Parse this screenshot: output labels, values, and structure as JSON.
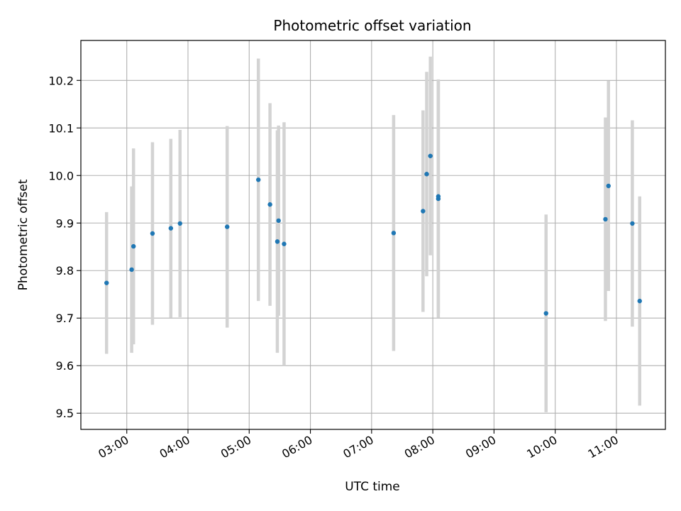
{
  "chart_data": {
    "type": "scatter",
    "title": "Photometric offset variation",
    "xlabel": "UTC time",
    "ylabel": "Photometric offset",
    "grid": true,
    "xlim": [
      2.25,
      11.8
    ],
    "ylim": [
      9.466,
      10.284
    ],
    "x_ticks": [
      {
        "value": 3,
        "label": "03:00"
      },
      {
        "value": 4,
        "label": "04:00"
      },
      {
        "value": 5,
        "label": "05:00"
      },
      {
        "value": 6,
        "label": "06:00"
      },
      {
        "value": 7,
        "label": "07:00"
      },
      {
        "value": 8,
        "label": "08:00"
      },
      {
        "value": 9,
        "label": "09:00"
      },
      {
        "value": 10,
        "label": "10:00"
      },
      {
        "value": 11,
        "label": "11:00"
      }
    ],
    "y_ticks": [
      {
        "value": 9.5,
        "label": "9.5"
      },
      {
        "value": 9.6,
        "label": "9.6"
      },
      {
        "value": 9.7,
        "label": "9.7"
      },
      {
        "value": 9.8,
        "label": "9.8"
      },
      {
        "value": 9.9,
        "label": "9.9"
      },
      {
        "value": 10.0,
        "label": "10.0"
      },
      {
        "value": 10.1,
        "label": "10.1"
      },
      {
        "value": 10.2,
        "label": "10.2"
      }
    ],
    "point_color": "#1f77b4",
    "errorbar_color": "#d3d3d3",
    "points": [
      {
        "x": 2.67,
        "y": 9.774,
        "err": 0.149
      },
      {
        "x": 3.08,
        "y": 9.802,
        "err": 0.175
      },
      {
        "x": 3.11,
        "y": 9.851,
        "err": 0.206
      },
      {
        "x": 3.42,
        "y": 9.878,
        "err": 0.192
      },
      {
        "x": 3.72,
        "y": 9.889,
        "err": 0.188
      },
      {
        "x": 3.87,
        "y": 9.899,
        "err": 0.197
      },
      {
        "x": 4.64,
        "y": 9.892,
        "err": 0.212
      },
      {
        "x": 5.15,
        "y": 9.991,
        "err": 0.255
      },
      {
        "x": 5.34,
        "y": 9.939,
        "err": 0.213
      },
      {
        "x": 5.46,
        "y": 9.861,
        "err": 0.234
      },
      {
        "x": 5.48,
        "y": 9.905,
        "err": 0.2
      },
      {
        "x": 5.57,
        "y": 9.856,
        "err": 0.256
      },
      {
        "x": 7.36,
        "y": 9.879,
        "err": 0.248
      },
      {
        "x": 7.84,
        "y": 9.925,
        "err": 0.212
      },
      {
        "x": 7.9,
        "y": 10.003,
        "err": 0.215
      },
      {
        "x": 7.96,
        "y": 10.041,
        "err": 0.209
      },
      {
        "x": 8.09,
        "y": 9.951,
        "err": 0.25
      },
      {
        "x": 8.09,
        "y": 9.956,
        "err": 0.246
      },
      {
        "x": 9.85,
        "y": 9.71,
        "err": 0.208
      },
      {
        "x": 10.82,
        "y": 9.908,
        "err": 0.214
      },
      {
        "x": 10.87,
        "y": 9.978,
        "err": 0.221
      },
      {
        "x": 11.26,
        "y": 9.899,
        "err": 0.217
      },
      {
        "x": 11.38,
        "y": 9.736,
        "err": 0.22
      }
    ]
  }
}
